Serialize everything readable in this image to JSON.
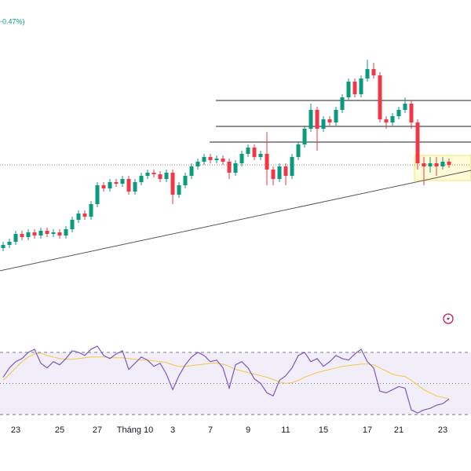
{
  "header_text": "-0.47%)",
  "chart_data": {
    "type": "candlestick",
    "categories": [
      null,
      null,
      "23",
      null,
      null,
      null,
      null,
      null,
      null,
      "25",
      null,
      null,
      null,
      null,
      null,
      "27",
      null,
      null,
      null,
      null,
      null,
      "Tháng 10",
      null,
      null,
      null,
      null,
      null,
      "3",
      null,
      null,
      null,
      null,
      null,
      "7",
      null,
      null,
      null,
      null,
      null,
      "9",
      null,
      null,
      null,
      null,
      null,
      "11",
      null,
      null,
      null,
      null,
      null,
      "15",
      null,
      null,
      null,
      null,
      null,
      null,
      "17",
      null,
      null,
      null,
      null,
      "21",
      null,
      null,
      null,
      null,
      null,
      null,
      "23",
      null
    ],
    "ohlc": {
      "open": [
        26,
        27,
        28,
        30.5,
        29.5,
        31,
        30,
        31.5,
        30.5,
        31,
        30,
        32,
        35,
        37,
        36,
        40,
        46,
        45,
        47,
        46.5,
        48,
        44,
        47,
        49,
        50,
        49.5,
        48,
        50,
        43,
        46,
        49,
        52,
        53.5,
        55,
        54,
        54.5,
        53.5,
        50,
        53,
        56,
        58,
        55,
        56,
        51,
        48,
        52,
        49,
        55,
        59,
        64,
        70,
        64,
        67,
        66,
        70,
        74,
        79,
        75,
        80,
        83,
        81,
        67,
        66,
        68,
        70,
        72,
        66,
        53,
        52,
        53,
        52,
        53.5
      ],
      "high": [
        28,
        29,
        31.5,
        31.5,
        32,
        32,
        32.5,
        32.5,
        32,
        32,
        33,
        36,
        38,
        38,
        41,
        47,
        47,
        48,
        48,
        49,
        49,
        48,
        50,
        51,
        51,
        50.5,
        51,
        51,
        47,
        50,
        53,
        54.5,
        56,
        56,
        55.5,
        55.5,
        54.5,
        54,
        57,
        59,
        59,
        57,
        63,
        52,
        53,
        53,
        56,
        60,
        65,
        72,
        71,
        68,
        68,
        71,
        75,
        80,
        80,
        81,
        86,
        85,
        82,
        68,
        69,
        71,
        74,
        73,
        67,
        55,
        55,
        55,
        55,
        54.5
      ],
      "low": [
        25,
        26,
        27,
        28.5,
        28.5,
        29,
        29,
        29.5,
        29.5,
        29,
        29,
        31,
        34,
        35,
        35,
        39,
        44,
        44,
        45.5,
        45.5,
        43,
        43,
        46,
        48,
        48.5,
        47,
        47,
        40,
        42,
        45,
        48,
        51,
        52.5,
        53,
        53,
        52.5,
        48,
        49,
        52,
        55,
        54,
        54,
        46,
        46,
        47,
        46,
        48,
        54,
        58,
        63,
        57,
        63,
        65,
        65,
        69,
        73,
        74,
        74,
        79,
        80,
        66,
        64,
        65,
        67,
        69,
        64,
        51,
        46,
        50,
        49,
        51,
        51.5
      ],
      "close": [
        27,
        28,
        30.5,
        29.5,
        31,
        30,
        31.5,
        30.5,
        31,
        30,
        32,
        35,
        37,
        36,
        40,
        46,
        45,
        47,
        46.5,
        48,
        44,
        47,
        49,
        50,
        49.5,
        48,
        50,
        43,
        46,
        49,
        52,
        53.5,
        55,
        54,
        54.5,
        53.5,
        50,
        53,
        56,
        58,
        55,
        56,
        51,
        48,
        52,
        49,
        55,
        59,
        64,
        70,
        64,
        67,
        66,
        70,
        74,
        79,
        75,
        80,
        83,
        81,
        67,
        66,
        68,
        70,
        72,
        66,
        53,
        52,
        53,
        52,
        53.5,
        52.5
      ]
    },
    "up_color": "#089981",
    "down_color": "#f23645",
    "ylim": [
      0,
      105
    ],
    "levels": [
      73,
      64.75,
      59.75
    ],
    "trendline": [
      19,
      49.25
    ],
    "range_box": [
      47.5,
      55.5
    ],
    "rsi": {
      "values": [
        54,
        60,
        64,
        66,
        70,
        72,
        63,
        60,
        64,
        62,
        66,
        71,
        70,
        68,
        72,
        74,
        68,
        66,
        69,
        71,
        59,
        63,
        67,
        65,
        61,
        63,
        56,
        46,
        55,
        62,
        67,
        70,
        68,
        64,
        65,
        60,
        47,
        62,
        64,
        60,
        53,
        50,
        44,
        42,
        52,
        55,
        60,
        68,
        70,
        64,
        66,
        61,
        64,
        68,
        66,
        65,
        69,
        72,
        64,
        60,
        45,
        44,
        46,
        48,
        47,
        33,
        31,
        33,
        34,
        36,
        37,
        40
      ],
      "ma": [
        52,
        56,
        60,
        64,
        67,
        69,
        69.5,
        68,
        67,
        66,
        65.5,
        65.5,
        66,
        66.5,
        67,
        67,
        67,
        66.5,
        66.5,
        66.5,
        66,
        65.5,
        65,
        65,
        64.5,
        64,
        63.5,
        62,
        61,
        61,
        61.5,
        62,
        62.5,
        63,
        63,
        62.5,
        61,
        59,
        58,
        57,
        56,
        55,
        54,
        52.5,
        51,
        50,
        50.5,
        52,
        54,
        55.5,
        57,
        58,
        59,
        60,
        61,
        61.5,
        62,
        62.5,
        62.5,
        62,
        60,
        58,
        56,
        55,
        54.5,
        52,
        49,
        46,
        44,
        42,
        41,
        40
      ],
      "color": "#7e57c2",
      "ma_color": "#f5c542",
      "ylim": [
        25,
        77
      ],
      "levels": [
        70,
        50,
        30
      ]
    }
  }
}
